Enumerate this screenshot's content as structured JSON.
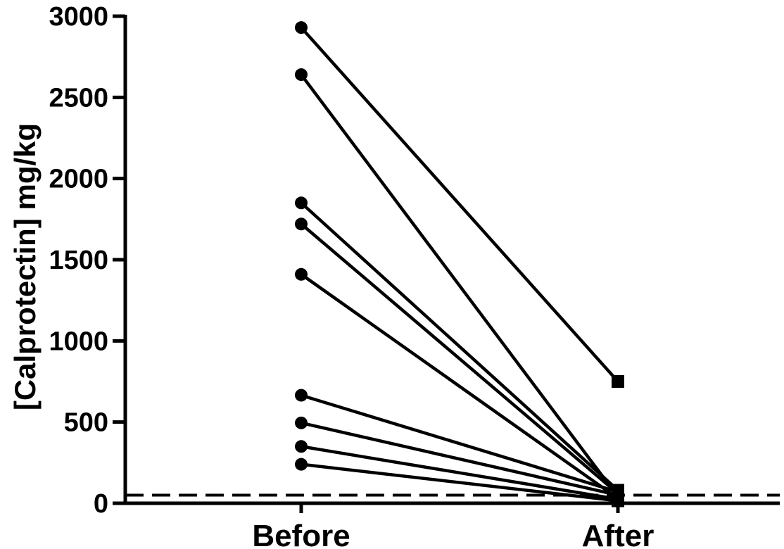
{
  "chart_data": {
    "type": "line",
    "title": "",
    "xlabel": "",
    "ylabel": "[Calprotectin] mg/kg",
    "categories": [
      "Before",
      "After"
    ],
    "ylim": [
      0,
      3000
    ],
    "yticks": [
      "0",
      "500",
      "1000",
      "1500",
      "2000",
      "2500",
      "3000"
    ],
    "reference_line": {
      "y": 50,
      "style": "dashed"
    },
    "marker_before": "circle",
    "marker_after": "square",
    "color": "#000000",
    "series": [
      {
        "values": [
          2930,
          750
        ]
      },
      {
        "values": [
          2640,
          40
        ]
      },
      {
        "values": [
          1850,
          80
        ]
      },
      {
        "values": [
          1720,
          60
        ]
      },
      {
        "values": [
          1410,
          30
        ]
      },
      {
        "values": [
          665,
          70
        ]
      },
      {
        "values": [
          495,
          50
        ]
      },
      {
        "values": [
          350,
          25
        ]
      },
      {
        "values": [
          240,
          15
        ]
      }
    ]
  }
}
